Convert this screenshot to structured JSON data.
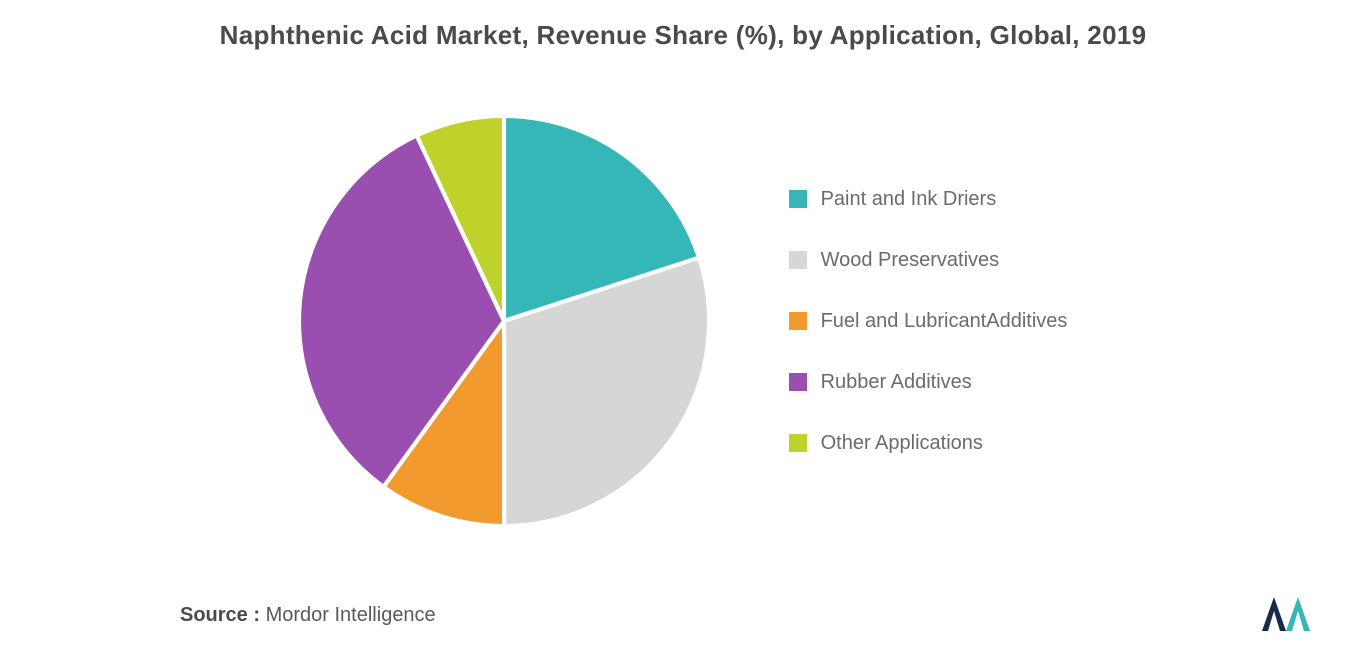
{
  "title": "Naphthenic Acid Market, Revenue Share (%), by Application, Global, 2019",
  "chart": {
    "type": "pie",
    "start_angle_deg": 0,
    "slices": [
      {
        "label": "Paint and Ink Driers",
        "value": 20,
        "color": "#35b7b7"
      },
      {
        "label": "Wood Preservatives",
        "value": 30,
        "color": "#d6d6d6"
      },
      {
        "label": "Fuel and LubricantAdditives",
        "value": 10,
        "color": "#f29a2e"
      },
      {
        "label": "Rubber Additives",
        "value": 33,
        "color": "#9a4fb0"
      },
      {
        "label": "Other Applications",
        "value": 7,
        "color": "#bfd22b"
      }
    ],
    "stroke": "#ffffff",
    "stroke_width": 2
  },
  "legend": {
    "items": [
      {
        "label": "Paint and Ink Driers",
        "color": "#35b7b7"
      },
      {
        "label": "Wood Preservatives",
        "color": "#d6d6d6"
      },
      {
        "label": "Fuel and LubricantAdditives",
        "color": "#f29a2e"
      },
      {
        "label": "Rubber Additives",
        "color": "#9a4fb0"
      },
      {
        "label": "Other Applications",
        "color": "#bfd22b"
      }
    ]
  },
  "source": {
    "label": "Source :",
    "text": " Mordor Intelligence"
  },
  "logo": {
    "bar1_color": "#1a2a4a",
    "bar2_color": "#35b7b7"
  }
}
